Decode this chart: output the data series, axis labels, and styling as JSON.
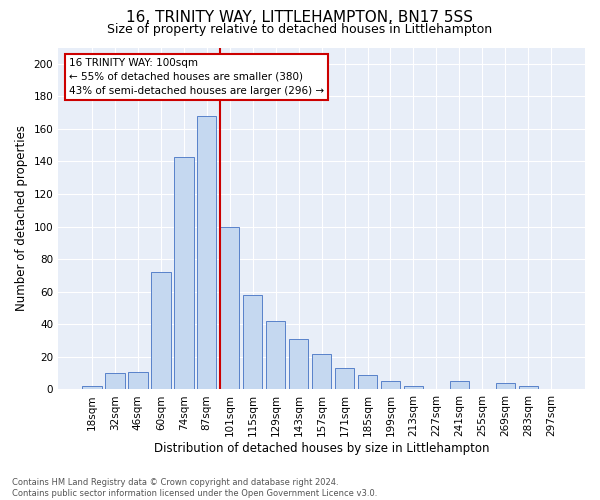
{
  "title": "16, TRINITY WAY, LITTLEHAMPTON, BN17 5SS",
  "subtitle": "Size of property relative to detached houses in Littlehampton",
  "xlabel": "Distribution of detached houses by size in Littlehampton",
  "ylabel": "Number of detached properties",
  "footer_line1": "Contains HM Land Registry data © Crown copyright and database right 2024.",
  "footer_line2": "Contains public sector information licensed under the Open Government Licence v3.0.",
  "bar_labels": [
    "18sqm",
    "32sqm",
    "46sqm",
    "60sqm",
    "74sqm",
    "87sqm",
    "101sqm",
    "115sqm",
    "129sqm",
    "143sqm",
    "157sqm",
    "171sqm",
    "185sqm",
    "199sqm",
    "213sqm",
    "227sqm",
    "241sqm",
    "255sqm",
    "269sqm",
    "283sqm",
    "297sqm"
  ],
  "bar_values": [
    2,
    10,
    11,
    72,
    143,
    168,
    100,
    58,
    42,
    31,
    22,
    13,
    9,
    5,
    2,
    0,
    5,
    0,
    4,
    2,
    0
  ],
  "bar_color": "#c5d8f0",
  "bar_edge_color": "#4472c4",
  "background_color": "#e8eef8",
  "vline_x_index": 6,
  "vline_color": "#cc0000",
  "annotation_title": "16 TRINITY WAY: 100sqm",
  "annotation_line1": "← 55% of detached houses are smaller (380)",
  "annotation_line2": "43% of semi-detached houses are larger (296) →",
  "annotation_box_color": "#cc0000",
  "ylim": [
    0,
    210
  ],
  "yticks": [
    0,
    20,
    40,
    60,
    80,
    100,
    120,
    140,
    160,
    180,
    200
  ],
  "grid_color": "#ffffff",
  "title_fontsize": 11,
  "subtitle_fontsize": 9,
  "xlabel_fontsize": 8.5,
  "ylabel_fontsize": 8.5,
  "tick_fontsize": 7.5,
  "annotation_fontsize": 7.5,
  "footer_fontsize": 6.0
}
